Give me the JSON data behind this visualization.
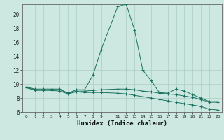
{
  "xlabel": "Humidex (Indice chaleur)",
  "bg_color": "#cce8e0",
  "line_color": "#1a7060",
  "grid_color": "#aaccc4",
  "x_ticks": [
    0,
    1,
    2,
    3,
    4,
    5,
    6,
    7,
    8,
    9,
    11,
    12,
    13,
    14,
    15,
    16,
    17,
    18,
    19,
    20,
    21,
    22,
    23
  ],
  "ylim": [
    6,
    21.5
  ],
  "yticks": [
    6,
    8,
    10,
    12,
    14,
    16,
    18,
    20
  ],
  "series": [
    {
      "x": [
        0,
        1,
        2,
        3,
        4,
        5,
        6,
        7,
        8,
        9,
        11,
        12,
        13,
        14,
        15,
        16,
        17,
        18,
        19,
        20,
        21,
        22,
        23
      ],
      "y": [
        9.6,
        9.3,
        9.3,
        9.3,
        9.3,
        8.7,
        9.2,
        9.2,
        11.3,
        15.0,
        21.2,
        21.5,
        17.8,
        12.0,
        10.5,
        8.8,
        8.7,
        9.3,
        9.0,
        8.5,
        8.0,
        7.5,
        7.5
      ]
    },
    {
      "x": [
        0,
        1,
        2,
        3,
        4,
        5,
        6,
        7,
        8,
        9,
        11,
        12,
        13,
        14,
        15,
        16,
        17,
        18,
        19,
        20,
        21,
        22,
        23
      ],
      "y": [
        9.5,
        9.2,
        9.2,
        9.2,
        9.2,
        8.7,
        9.0,
        9.0,
        9.1,
        9.2,
        9.3,
        9.3,
        9.2,
        9.0,
        8.9,
        8.7,
        8.6,
        8.5,
        8.3,
        8.1,
        7.8,
        7.4,
        7.4
      ]
    },
    {
      "x": [
        0,
        1,
        2,
        3,
        4,
        5,
        6,
        7,
        8,
        9,
        11,
        12,
        13,
        14,
        15,
        16,
        17,
        18,
        19,
        20,
        21,
        22,
        23
      ],
      "y": [
        9.5,
        9.1,
        9.1,
        9.1,
        9.0,
        8.6,
        8.9,
        8.8,
        8.8,
        8.8,
        8.7,
        8.6,
        8.4,
        8.2,
        8.0,
        7.8,
        7.6,
        7.4,
        7.2,
        7.0,
        6.8,
        6.4,
        6.3
      ]
    }
  ]
}
